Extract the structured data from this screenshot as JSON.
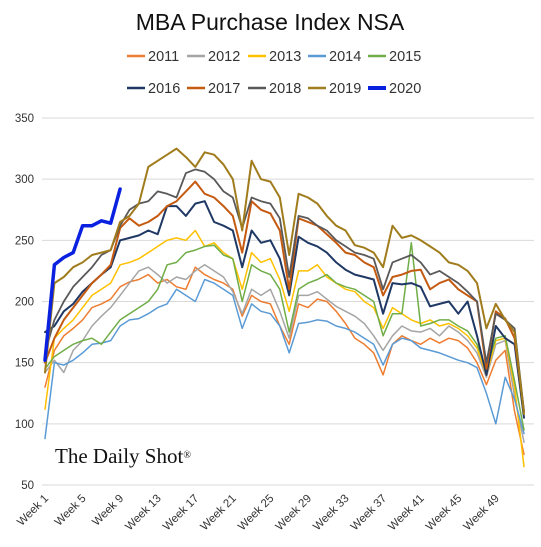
{
  "chart_data": {
    "type": "line",
    "title": "MBA Purchase Index NSA",
    "xlabel": "",
    "ylabel": "",
    "ylim": [
      50,
      350
    ],
    "yticks": [
      50,
      100,
      150,
      200,
      250,
      300,
      350
    ],
    "x_tick_labels": [
      "Week 1",
      "Week 5",
      "Week 9",
      "Week 13",
      "Week 17",
      "Week 21",
      "Week 25",
      "Week 29",
      "Week 33",
      "Week 37",
      "Week 41",
      "Week 45",
      "Week 49"
    ],
    "x_tick_weeks": [
      1,
      5,
      9,
      13,
      17,
      21,
      25,
      29,
      33,
      37,
      41,
      45,
      49
    ],
    "grid": "horizontal",
    "legend_placement": "top",
    "watermark": "The Daily Shot",
    "watermark_mark": "®",
    "series": [
      {
        "name": "2011",
        "color": "#ed7d31",
        "width": 1.5,
        "values": [
          130,
          160,
          172,
          178,
          185,
          195,
          198,
          202,
          212,
          216,
          218,
          222,
          215,
          218,
          212,
          210,
          228,
          222,
          218,
          215,
          210,
          188,
          205,
          200,
          198,
          180,
          165,
          198,
          195,
          202,
          200,
          192,
          182,
          170,
          165,
          158,
          140,
          165,
          172,
          168,
          165,
          170,
          166,
          170,
          168,
          162,
          150,
          132,
          152,
          160,
          110,
          75
        ]
      },
      {
        "name": "2012",
        "color": "#a5a5a5",
        "width": 1.5,
        "values": [
          142,
          152,
          142,
          160,
          168,
          180,
          188,
          195,
          205,
          215,
          225,
          228,
          222,
          215,
          220,
          218,
          225,
          230,
          225,
          220,
          208,
          190,
          210,
          205,
          210,
          192,
          170,
          205,
          205,
          208,
          202,
          196,
          192,
          188,
          182,
          172,
          160,
          172,
          180,
          176,
          175,
          178,
          172,
          180,
          175,
          168,
          158,
          138,
          165,
          168,
          122,
          85
        ]
      },
      {
        "name": "2013",
        "color": "#ffc000",
        "width": 1.5,
        "values": [
          112,
          170,
          178,
          185,
          195,
          205,
          210,
          215,
          230,
          232,
          235,
          240,
          245,
          250,
          252,
          250,
          258,
          245,
          248,
          240,
          235,
          210,
          240,
          232,
          235,
          218,
          192,
          225,
          225,
          230,
          220,
          215,
          210,
          208,
          200,
          195,
          178,
          195,
          190,
          185,
          182,
          185,
          180,
          182,
          178,
          172,
          162,
          140,
          168,
          170,
          130,
          65
        ]
      },
      {
        "name": "2014",
        "color": "#5b9bd5",
        "width": 1.5,
        "values": [
          88,
          150,
          148,
          152,
          158,
          165,
          166,
          168,
          180,
          185,
          186,
          190,
          195,
          198,
          210,
          205,
          200,
          218,
          215,
          210,
          205,
          178,
          198,
          192,
          190,
          180,
          158,
          182,
          183,
          185,
          184,
          180,
          178,
          175,
          170,
          165,
          148,
          165,
          170,
          168,
          162,
          160,
          158,
          155,
          152,
          150,
          146,
          125,
          100,
          138,
          120,
          92
        ]
      },
      {
        "name": "2015",
        "color": "#70ad47",
        "width": 1.5,
        "values": [
          145,
          155,
          160,
          165,
          168,
          170,
          165,
          175,
          185,
          190,
          195,
          200,
          210,
          230,
          232,
          240,
          242,
          245,
          246,
          238,
          235,
          200,
          230,
          225,
          222,
          210,
          175,
          210,
          215,
          218,
          222,
          215,
          212,
          210,
          205,
          200,
          172,
          190,
          190,
          248,
          180,
          182,
          185,
          185,
          180,
          176,
          165,
          145,
          170,
          172,
          135,
          95
        ]
      },
      {
        "name": "2016",
        "color": "#1f3864",
        "width": 2.0,
        "values": [
          175,
          180,
          192,
          198,
          208,
          215,
          222,
          228,
          250,
          252,
          254,
          258,
          255,
          278,
          278,
          270,
          280,
          282,
          265,
          262,
          258,
          228,
          258,
          248,
          250,
          235,
          205,
          253,
          248,
          245,
          240,
          232,
          226,
          222,
          220,
          218,
          190,
          215,
          214,
          215,
          212,
          196,
          198,
          200,
          190,
          200,
          172,
          140,
          180,
          170,
          165,
          105
        ]
      },
      {
        "name": "2017",
        "color": "#c55a11",
        "width": 2.0,
        "values": [
          150,
          170,
          185,
          195,
          205,
          215,
          222,
          230,
          260,
          268,
          262,
          265,
          270,
          278,
          282,
          290,
          298,
          288,
          285,
          278,
          270,
          240,
          282,
          275,
          272,
          258,
          210,
          268,
          265,
          262,
          255,
          248,
          240,
          238,
          232,
          228,
          205,
          220,
          222,
          225,
          226,
          210,
          215,
          218,
          210,
          205,
          200,
          145,
          192,
          186,
          170,
          110
        ]
      },
      {
        "name": "2018",
        "color": "#595959",
        "width": 1.8,
        "values": [
          158,
          185,
          200,
          212,
          220,
          228,
          238,
          242,
          262,
          275,
          280,
          282,
          290,
          288,
          285,
          305,
          308,
          306,
          300,
          290,
          285,
          260,
          285,
          282,
          280,
          268,
          220,
          270,
          268,
          262,
          258,
          250,
          245,
          240,
          238,
          235,
          210,
          232,
          235,
          238,
          232,
          222,
          225,
          220,
          215,
          208,
          200,
          150,
          190,
          185,
          178,
          110
        ]
      },
      {
        "name": "2019",
        "color": "#a07c1c",
        "width": 2.0,
        "values": [
          142,
          215,
          220,
          228,
          232,
          238,
          240,
          242,
          265,
          270,
          280,
          310,
          315,
          320,
          325,
          318,
          310,
          322,
          320,
          312,
          300,
          258,
          315,
          300,
          298,
          285,
          238,
          288,
          285,
          280,
          270,
          262,
          258,
          246,
          244,
          240,
          228,
          262,
          252,
          254,
          250,
          245,
          240,
          232,
          230,
          225,
          215,
          178,
          198,
          185,
          175,
          108
        ]
      },
      {
        "name": "2020",
        "color": "#0a22e0",
        "width": 3.5,
        "values": [
          152,
          230,
          236,
          240,
          262,
          262,
          266,
          264,
          292
        ]
      }
    ]
  }
}
